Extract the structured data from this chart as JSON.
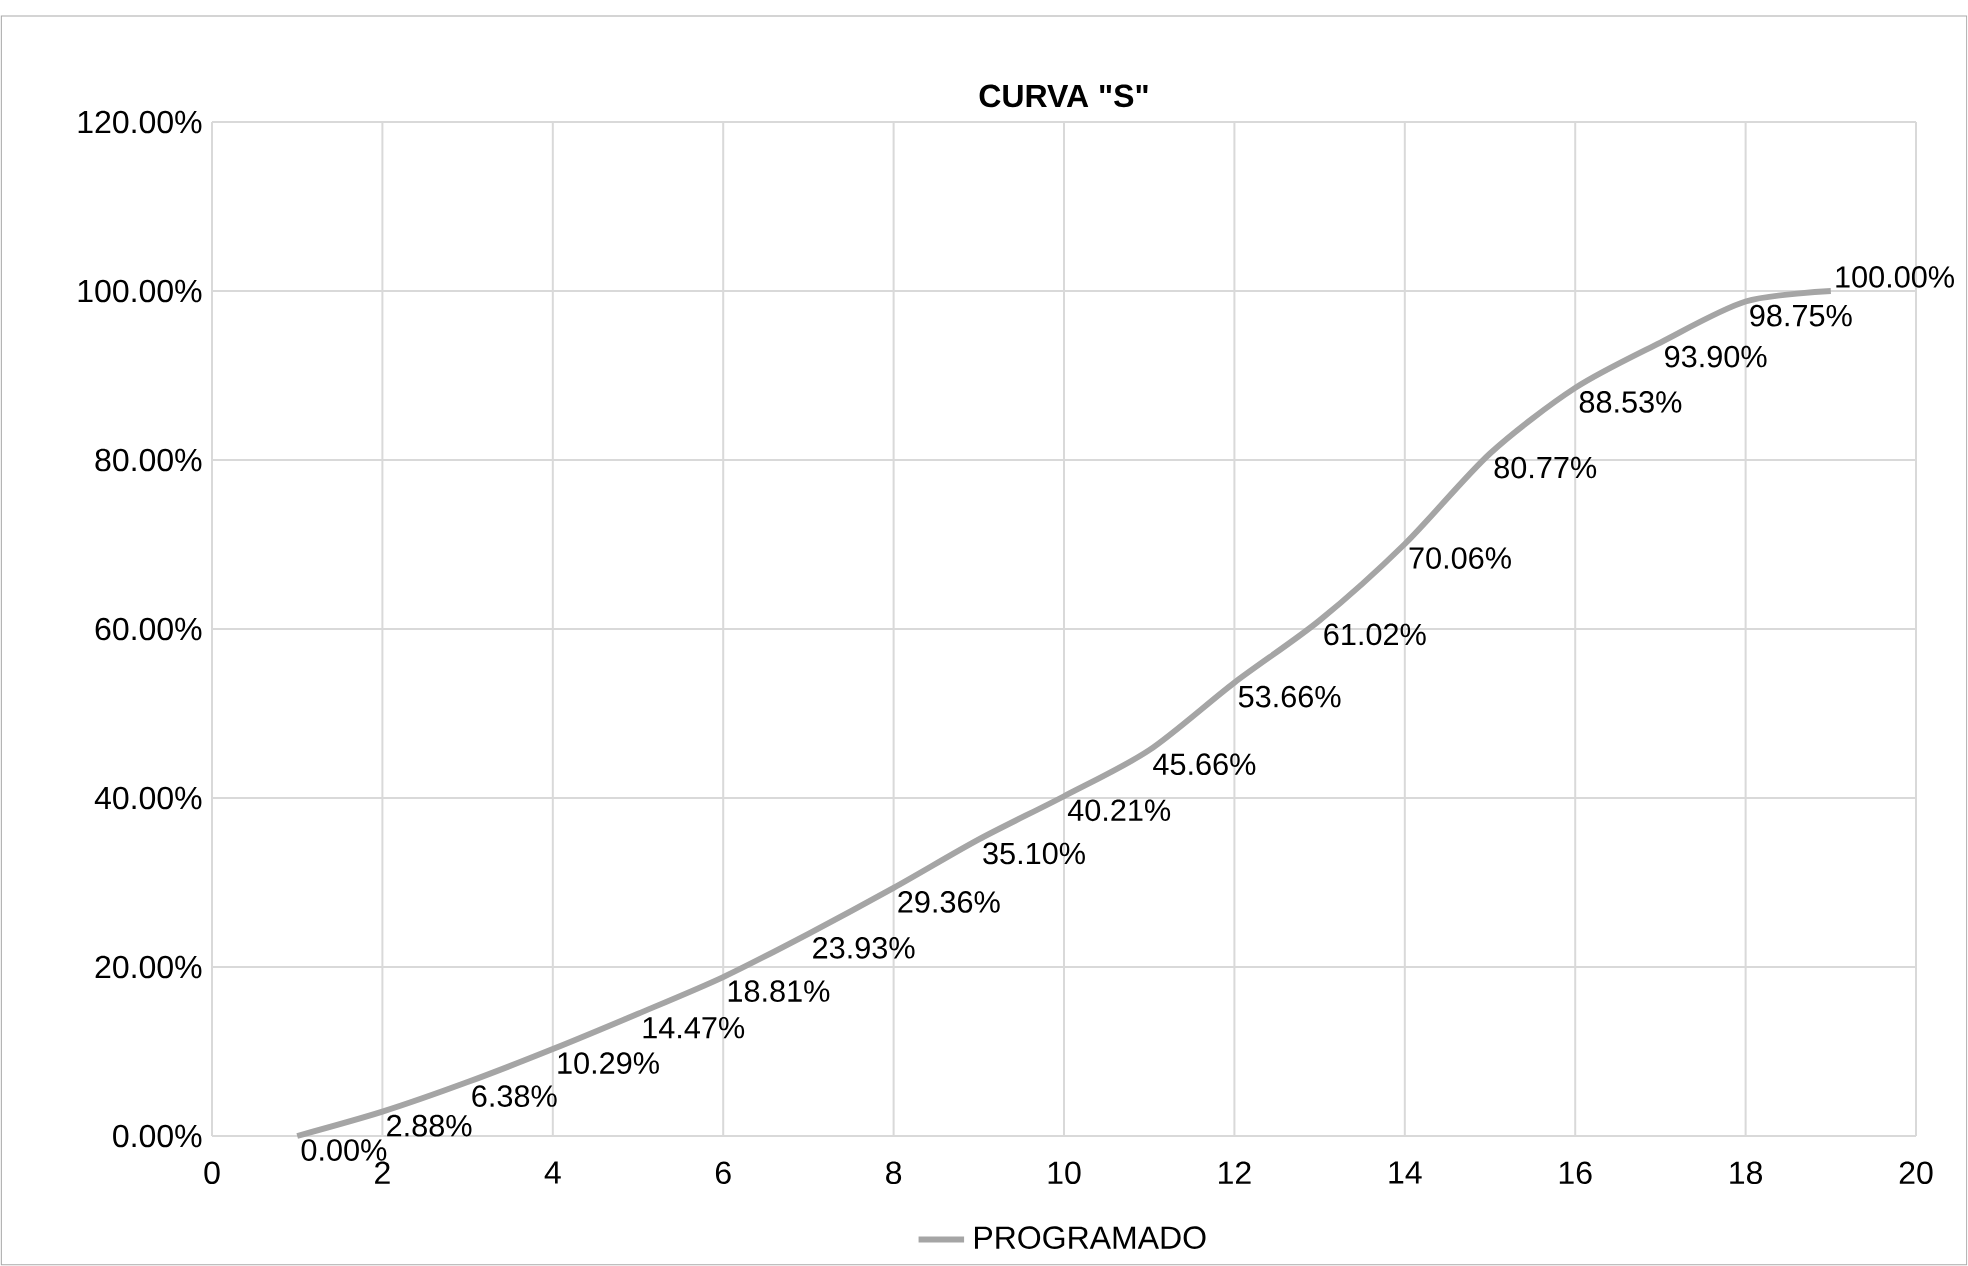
{
  "chart_data": {
    "type": "line",
    "title": "CURVA \"S\"",
    "x": [
      1,
      2,
      3,
      4,
      5,
      6,
      7,
      8,
      9,
      10,
      11,
      12,
      13,
      14,
      15,
      16,
      17,
      18,
      19
    ],
    "series": [
      {
        "name": "PROGRAMADO",
        "color": "#a5a5a5",
        "values": [
          0.0,
          2.88,
          6.38,
          10.29,
          14.47,
          18.81,
          23.93,
          29.36,
          35.1,
          40.21,
          45.66,
          53.66,
          61.02,
          70.06,
          80.77,
          88.53,
          93.9,
          98.75,
          100.0
        ],
        "value_labels": [
          "0.00%",
          "2.88%",
          "6.38%",
          "10.29%",
          "14.47%",
          "18.81%",
          "23.93%",
          "29.36%",
          "35.10%",
          "40.21%",
          "45.66%",
          "53.66%",
          "61.02%",
          "70.06%",
          "80.77%",
          "88.53%",
          "93.90%",
          "98.75%",
          "100.00%"
        ]
      }
    ],
    "xlim": [
      0,
      20
    ],
    "xticks": [
      0,
      2,
      4,
      6,
      8,
      10,
      12,
      14,
      16,
      18,
      20
    ],
    "ylim": [
      0,
      120
    ],
    "yticks": [
      {
        "value": 0,
        "label": "0.00%"
      },
      {
        "value": 20,
        "label": "20.00%"
      },
      {
        "value": 40,
        "label": "40.00%"
      },
      {
        "value": 60,
        "label": "60.00%"
      },
      {
        "value": 80,
        "label": "80.00%"
      },
      {
        "value": 100,
        "label": "100.00%"
      },
      {
        "value": 120,
        "label": "120.00%"
      }
    ],
    "grid": true,
    "legend": "bottom",
    "marker": "none",
    "line_style": "solid"
  }
}
